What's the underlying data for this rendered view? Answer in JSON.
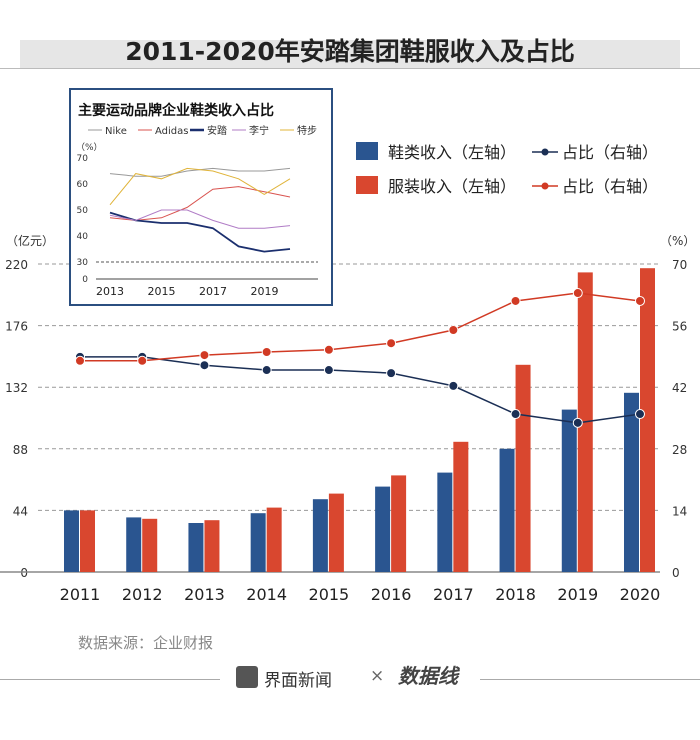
{
  "title": "2011-2020年安踏集团鞋服收入及占比",
  "source": "数据来源：企业财报",
  "footer": {
    "brand": "界面新闻",
    "times": "×",
    "logo_text": "数据线 DATA WIRE"
  },
  "colors": {
    "shoe": "#2a5590",
    "apparel": "#d9472f",
    "shoe_line": "#1b2f55",
    "apparel_line": "#d13a24"
  },
  "chart_data": [
    {
      "type": "bar+line",
      "categories": [
        "2011",
        "2012",
        "2013",
        "2014",
        "2015",
        "2016",
        "2017",
        "2018",
        "2019",
        "2020"
      ],
      "y_left": {
        "label": "（亿元）",
        "ticks": [
          0,
          44,
          88,
          132,
          176,
          220
        ],
        "range": [
          0,
          220
        ]
      },
      "y_right": {
        "label": "（%）",
        "ticks": [
          0,
          14,
          28,
          42,
          56,
          70
        ],
        "range": [
          0,
          70
        ]
      },
      "grid": true,
      "legend_placement": "top-right",
      "series": [
        {
          "name": "鞋类收入（左轴）",
          "kind": "bar",
          "axis": "left",
          "values": [
            44,
            39,
            35,
            42,
            52,
            61,
            71,
            88,
            116,
            128
          ]
        },
        {
          "name": "服装收入（左轴）",
          "kind": "bar",
          "axis": "left",
          "values": [
            44,
            38,
            37,
            46,
            56,
            69,
            93,
            148,
            214,
            217
          ]
        },
        {
          "name": "占比（右轴）",
          "kind": "line",
          "axis": "right",
          "of": "鞋类",
          "values": [
            48.9,
            48.9,
            47,
            45.9,
            45.9,
            45.2,
            42.3,
            35.9,
            33.9,
            35.9
          ]
        },
        {
          "name": "占比（右轴）",
          "kind": "line",
          "axis": "right",
          "of": "服装",
          "values": [
            48,
            48,
            49.3,
            50,
            50.5,
            52,
            55,
            61.6,
            63.4,
            61.6
          ]
        }
      ]
    },
    {
      "type": "line",
      "title": "主要运动品牌企业鞋类收入占比",
      "ylabel": "（%）",
      "x": [
        2013,
        2014,
        2015,
        2016,
        2017,
        2018,
        2019,
        2020
      ],
      "xticks": [
        "2013",
        "2015",
        "2017",
        "2019"
      ],
      "yticks": [
        0,
        30,
        40,
        50,
        60,
        70
      ],
      "y_break": true,
      "series": [
        {
          "name": "Nike",
          "color": "#999999",
          "values": [
            64,
            63,
            63,
            65,
            66,
            65,
            65,
            66
          ]
        },
        {
          "name": "Adidas",
          "color": "#d9534f",
          "values": [
            47,
            46,
            47,
            51,
            58,
            59,
            57,
            55
          ]
        },
        {
          "name": "安踏",
          "color": "#1b2f6e",
          "values": [
            49,
            46,
            45,
            45,
            43,
            36,
            34,
            35
          ]
        },
        {
          "name": "李宁",
          "color": "#b07cc6",
          "values": [
            48,
            46,
            50,
            50,
            46,
            43,
            43,
            44
          ]
        },
        {
          "name": "特步",
          "color": "#e0b43a",
          "values": [
            52,
            64,
            62,
            66,
            65,
            62,
            56,
            62
          ]
        }
      ]
    }
  ]
}
